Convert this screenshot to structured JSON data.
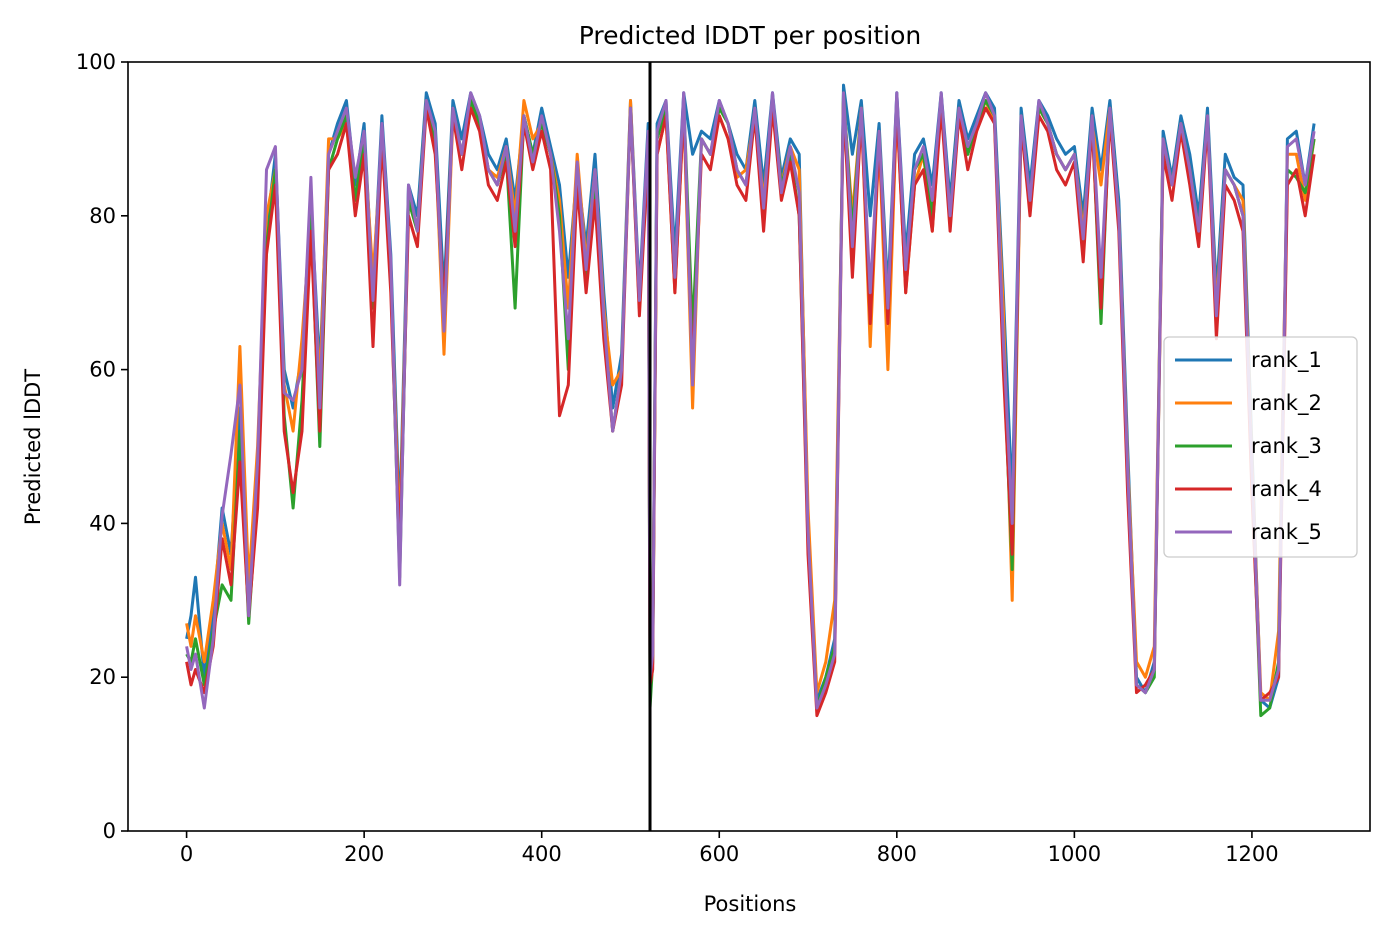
{
  "chart_data": {
    "type": "line",
    "title": "Predicted lDDT per position",
    "xlabel": "Positions",
    "ylabel": "Predicted lDDT",
    "xlim": [
      -66,
      1333
    ],
    "ylim": [
      0,
      100
    ],
    "xticks": [
      0,
      200,
      400,
      600,
      800,
      1000,
      1200
    ],
    "yticks": [
      0,
      20,
      40,
      60,
      80,
      100
    ],
    "grid": false,
    "legend_position": "center-right",
    "vline_x": 522,
    "vline_color": "#000000",
    "anchor_x": [
      0,
      5,
      10,
      20,
      30,
      40,
      50,
      60,
      70,
      80,
      90,
      100,
      110,
      120,
      130,
      140,
      150,
      160,
      170,
      180,
      190,
      200,
      210,
      220,
      230,
      240,
      250,
      260,
      270,
      280,
      290,
      300,
      310,
      320,
      330,
      340,
      350,
      360,
      370,
      380,
      390,
      400,
      410,
      420,
      430,
      440,
      450,
      460,
      470,
      480,
      490,
      500,
      510,
      520,
      522,
      525,
      530,
      540,
      550,
      560,
      570,
      580,
      590,
      600,
      610,
      620,
      630,
      640,
      650,
      660,
      670,
      680,
      690,
      700,
      710,
      720,
      730,
      740,
      750,
      760,
      770,
      780,
      790,
      800,
      810,
      820,
      830,
      840,
      850,
      860,
      870,
      880,
      890,
      900,
      910,
      920,
      930,
      940,
      950,
      960,
      970,
      980,
      990,
      1000,
      1010,
      1020,
      1030,
      1040,
      1050,
      1060,
      1070,
      1080,
      1090,
      1100,
      1110,
      1120,
      1130,
      1140,
      1150,
      1160,
      1170,
      1180,
      1190,
      1200,
      1210,
      1220,
      1230,
      1240,
      1250,
      1260,
      1270
    ],
    "series": [
      {
        "name": "rank_1",
        "color": "#1f77b4",
        "values": [
          25,
          28,
          33,
          20,
          28,
          42,
          36,
          55,
          30,
          45,
          78,
          88,
          60,
          55,
          62,
          82,
          60,
          88,
          92,
          95,
          84,
          92,
          70,
          93,
          75,
          40,
          84,
          80,
          96,
          92,
          70,
          95,
          90,
          96,
          93,
          88,
          86,
          90,
          82,
          93,
          88,
          94,
          89,
          84,
          72,
          86,
          76,
          88,
          70,
          55,
          62,
          95,
          70,
          92,
          20,
          24,
          92,
          95,
          75,
          96,
          88,
          91,
          90,
          95,
          92,
          88,
          86,
          95,
          84,
          96,
          85,
          90,
          88,
          40,
          17,
          20,
          25,
          97,
          88,
          95,
          80,
          92,
          70,
          96,
          75,
          88,
          90,
          84,
          96,
          82,
          95,
          90,
          93,
          96,
          94,
          70,
          43,
          94,
          84,
          95,
          93,
          90,
          88,
          89,
          80,
          94,
          86,
          95,
          82,
          50,
          20,
          18,
          22,
          91,
          85,
          93,
          88,
          80,
          94,
          70,
          88,
          85,
          84,
          50,
          17,
          16,
          20,
          90,
          91,
          84,
          92
        ]
      },
      {
        "name": "rank_2",
        "color": "#ff7f0e",
        "values": [
          27,
          24,
          28,
          22,
          30,
          40,
          34,
          63,
          32,
          50,
          80,
          86,
          58,
          52,
          64,
          80,
          58,
          90,
          90,
          92,
          82,
          90,
          72,
          90,
          72,
          38,
          82,
          78,
          95,
          90,
          62,
          93,
          88,
          95,
          92,
          86,
          85,
          89,
          80,
          95,
          90,
          92,
          88,
          82,
          68,
          88,
          74,
          86,
          68,
          58,
          60,
          95,
          68,
          90,
          25,
          24,
          88,
          93,
          70,
          94,
          55,
          90,
          88,
          93,
          90,
          85,
          86,
          93,
          82,
          95,
          84,
          89,
          86,
          42,
          18,
          22,
          30,
          95,
          80,
          94,
          63,
          90,
          60,
          94,
          70,
          84,
          88,
          78,
          95,
          80,
          94,
          88,
          92,
          95,
          92,
          68,
          30,
          92,
          82,
          94,
          92,
          88,
          86,
          88,
          78,
          92,
          84,
          94,
          80,
          48,
          22,
          20,
          24,
          90,
          84,
          92,
          86,
          78,
          92,
          68,
          86,
          84,
          82,
          48,
          18,
          17,
          26,
          88,
          88,
          82,
          90
        ]
      },
      {
        "name": "rank_3",
        "color": "#2ca02c",
        "values": [
          23,
          22,
          25,
          19,
          26,
          32,
          30,
          52,
          27,
          44,
          76,
          86,
          54,
          42,
          56,
          80,
          50,
          86,
          90,
          93,
          82,
          90,
          68,
          91,
          72,
          33,
          82,
          78,
          95,
          90,
          66,
          94,
          88,
          95,
          92,
          86,
          84,
          88,
          68,
          93,
          88,
          92,
          88,
          80,
          60,
          86,
          72,
          84,
          66,
          52,
          60,
          94,
          68,
          90,
          16,
          22,
          90,
          94,
          72,
          95,
          65,
          90,
          88,
          94,
          92,
          86,
          84,
          94,
          80,
          95,
          84,
          88,
          80,
          38,
          16,
          20,
          24,
          96,
          78,
          94,
          68,
          91,
          68,
          95,
          72,
          86,
          88,
          80,
          95,
          80,
          94,
          88,
          92,
          95,
          93,
          62,
          34,
          93,
          82,
          94,
          92,
          88,
          86,
          88,
          76,
          93,
          66,
          94,
          80,
          46,
          19,
          18,
          20,
          90,
          84,
          92,
          86,
          78,
          93,
          66,
          86,
          84,
          80,
          46,
          15,
          16,
          22,
          86,
          85,
          83,
          90
        ]
      },
      {
        "name": "rank_4",
        "color": "#d62728",
        "values": [
          22,
          19,
          21,
          18,
          24,
          38,
          32,
          48,
          28,
          42,
          75,
          84,
          52,
          44,
          52,
          78,
          52,
          86,
          88,
          92,
          80,
          88,
          63,
          90,
          70,
          36,
          80,
          76,
          94,
          88,
          68,
          93,
          86,
          94,
          91,
          84,
          82,
          87,
          76,
          92,
          86,
          91,
          86,
          54,
          58,
          84,
          70,
          82,
          64,
          52,
          58,
          94,
          67,
          88,
          19,
          21,
          88,
          93,
          70,
          94,
          60,
          88,
          86,
          93,
          90,
          84,
          82,
          93,
          78,
          94,
          82,
          87,
          80,
          36,
          15,
          18,
          22,
          95,
          72,
          93,
          66,
          90,
          66,
          94,
          70,
          84,
          86,
          78,
          94,
          78,
          93,
          86,
          91,
          94,
          92,
          60,
          36,
          92,
          80,
          93,
          91,
          86,
          84,
          87,
          74,
          92,
          68,
          93,
          78,
          44,
          18,
          19,
          21,
          88,
          82,
          91,
          84,
          76,
          92,
          64,
          84,
          82,
          78,
          44,
          17,
          18,
          20,
          84,
          86,
          80,
          88
        ]
      },
      {
        "name": "rank_5",
        "color": "#9467bd",
        "values": [
          24,
          21,
          23,
          16,
          25,
          41,
          49,
          58,
          28,
          48,
          86,
          89,
          57,
          56,
          60,
          85,
          55,
          88,
          91,
          94,
          85,
          91,
          69,
          92,
          74,
          32,
          84,
          78,
          95,
          91,
          65,
          94,
          88,
          96,
          93,
          86,
          84,
          89,
          78,
          93,
          87,
          93,
          88,
          78,
          64,
          87,
          73,
          86,
          67,
          52,
          60,
          94,
          69,
          91,
          20,
          23,
          91,
          95,
          72,
          96,
          58,
          90,
          88,
          95,
          92,
          86,
          84,
          94,
          81,
          96,
          83,
          89,
          83,
          39,
          16,
          19,
          23,
          96,
          76,
          94,
          70,
          91,
          68,
          96,
          73,
          86,
          89,
          82,
          96,
          80,
          94,
          89,
          92,
          96,
          93,
          64,
          40,
          93,
          82,
          95,
          92,
          88,
          86,
          88,
          77,
          93,
          72,
          94,
          80,
          47,
          19,
          18,
          21,
          90,
          84,
          92,
          86,
          78,
          93,
          67,
          86,
          84,
          80,
          47,
          17,
          17,
          21,
          89,
          90,
          84,
          91
        ]
      }
    ]
  }
}
